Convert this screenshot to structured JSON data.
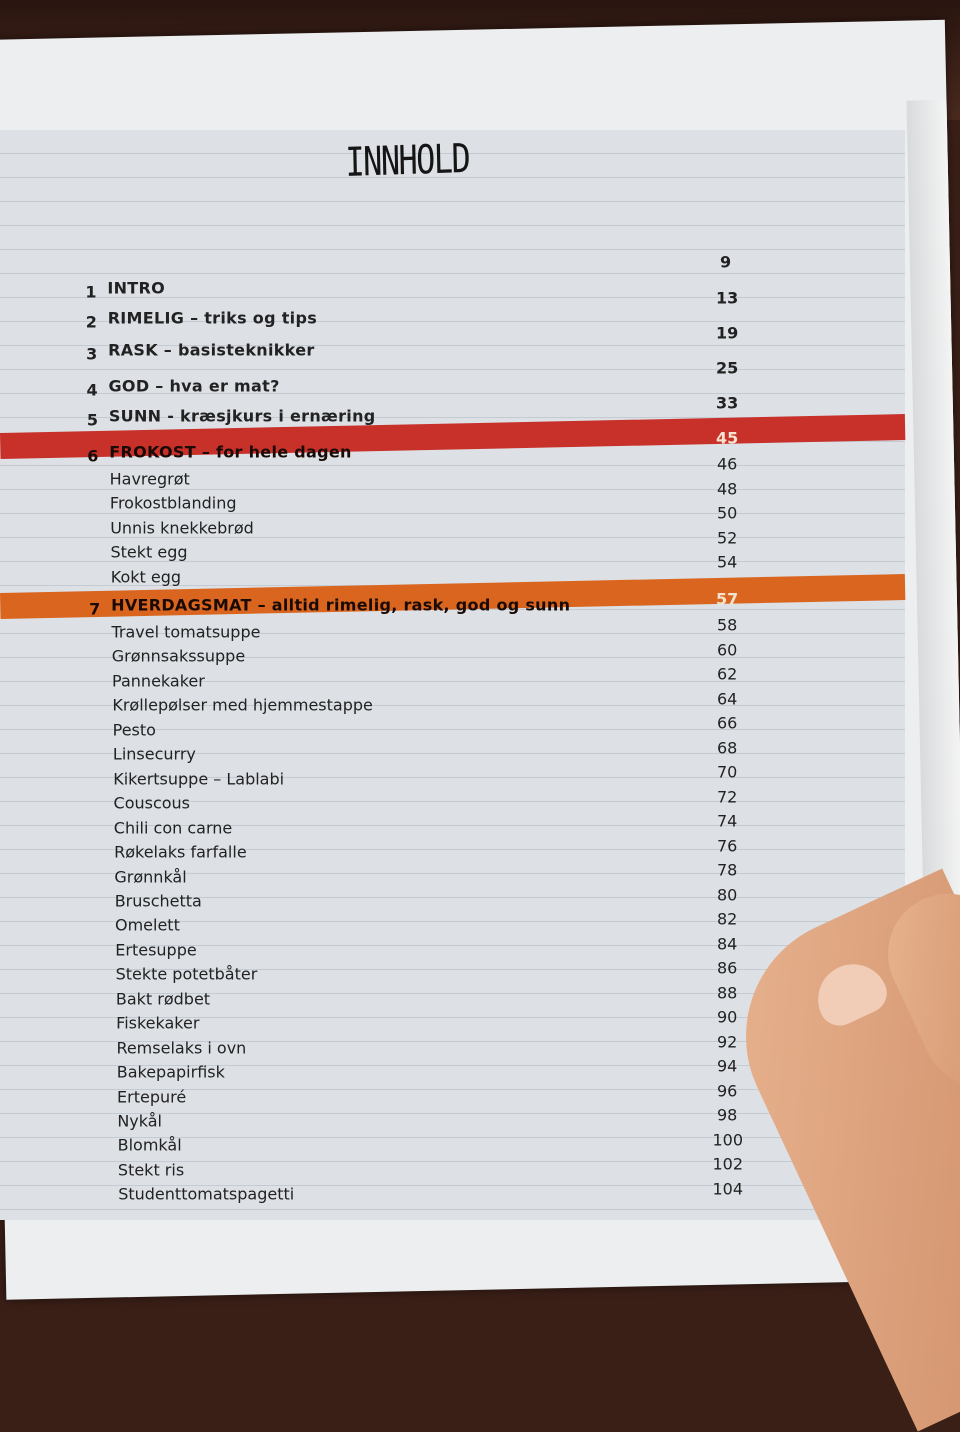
{
  "title": "INNHOLD",
  "sections": [
    {
      "number": "1",
      "label": "INTRO",
      "page": "9"
    },
    {
      "number": "2",
      "label": "RIMELIG – triks og tips",
      "page": "13"
    },
    {
      "number": "3",
      "label": "RASK – basisteknikker",
      "page": "19"
    },
    {
      "number": "4",
      "label": "GOD – hva er mat?",
      "page": "25"
    },
    {
      "number": "5",
      "label": "SUNN - kræsjkurs i ernæring",
      "page": "33"
    },
    {
      "number": "6",
      "label": "FROKOST – for hele dagen",
      "page": "45",
      "highlight": "#c8302a",
      "items": [
        {
          "label": "Havregrøt",
          "page": "46"
        },
        {
          "label": "Frokostblanding",
          "page": "48"
        },
        {
          "label": "Unnis knekkebrød",
          "page": "50"
        },
        {
          "label": "Stekt egg",
          "page": "52"
        },
        {
          "label": "Kokt egg",
          "page": "54"
        }
      ]
    },
    {
      "number": "7",
      "label": "HVERDAGSMAT – alltid rimelig, rask, god og sunn",
      "page": "57",
      "highlight": "#d9651e",
      "items": [
        {
          "label": "Travel tomatsuppe",
          "page": "58"
        },
        {
          "label": "Grønnsakssuppe",
          "page": "60"
        },
        {
          "label": "Pannekaker",
          "page": "62"
        },
        {
          "label": "Krøllepølser med hjemmestappe",
          "page": "64"
        },
        {
          "label": "Pesto",
          "page": "66"
        },
        {
          "label": "Linsecurry",
          "page": "68"
        },
        {
          "label": "Kikertsuppe – Lablabi",
          "page": "70"
        },
        {
          "label": "Couscous",
          "page": "72"
        },
        {
          "label": "Chili con carne",
          "page": "74"
        },
        {
          "label": "Røkelaks farfalle",
          "page": "76"
        },
        {
          "label": "Grønnkål",
          "page": "78"
        },
        {
          "label": "Bruschetta",
          "page": "80"
        },
        {
          "label": "Omelett",
          "page": "82"
        },
        {
          "label": "Ertesuppe",
          "page": "84"
        },
        {
          "label": "Stekte potetbåter",
          "page": "86"
        },
        {
          "label": "Bakt rødbet",
          "page": "88"
        },
        {
          "label": "Fiskekaker",
          "page": "90"
        },
        {
          "label": "Remselaks i ovn",
          "page": "92"
        },
        {
          "label": "Bakepapirfisk",
          "page": "94"
        },
        {
          "label": "Ertepuré",
          "page": "96"
        },
        {
          "label": "Nykål",
          "page": "98"
        },
        {
          "label": "Blomkål",
          "page": "100"
        },
        {
          "label": "Stekt ris",
          "page": "102"
        },
        {
          "label": "Studenttomatspagetti",
          "page": "104"
        }
      ]
    }
  ]
}
